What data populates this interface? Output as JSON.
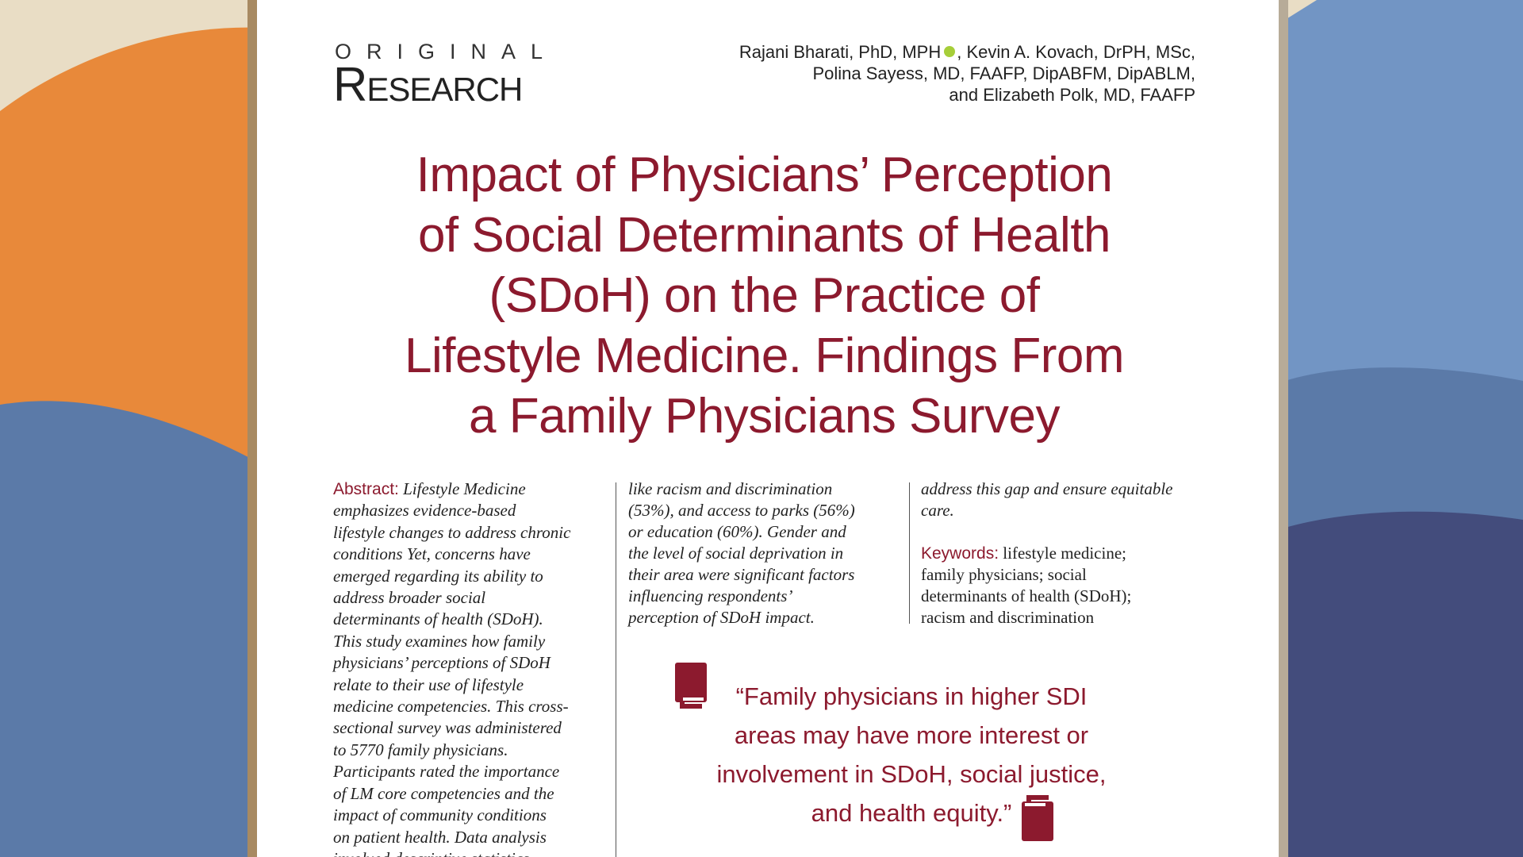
{
  "page": {
    "section_label_top": "ORIGINAL",
    "section_label_bottom": "Research",
    "authors": {
      "line1_before_orcid": "Rajani Bharati, PhD, MPH",
      "line1_after_orcid": ", Kevin A. Kovach, DrPH, MSc,",
      "line2": "Polina Sayess, MD, FAAFP, DipABFM, DipABLM,",
      "line3": "and Elizabeth Polk, MD, FAAFP"
    },
    "title_lines": [
      "Impact of Physicians’ Perception",
      "of Social Determinants of Health",
      "(SDoH) on the Practice of",
      "Lifestyle Medicine. Findings From",
      "a Family Physicians Survey"
    ],
    "abstract": {
      "label": "Abstract:",
      "lines": [
        " Lifestyle Medicine",
        "emphasizes evidence-based",
        "lifestyle changes to address chronic",
        "conditions Yet, concerns have",
        "emerged regarding its ability to",
        "address broader social",
        "determinants of health (SDoH).",
        "This study examines how family",
        "physicians’ perceptions of SDoH",
        "relate to their use of lifestyle",
        "medicine competencies. This cross-",
        "sectional survey was administered",
        "to 5770 family physicians.",
        "Participants rated the importance",
        "of LM core competencies and the",
        "impact of community conditions",
        "on patient health. Data analysis",
        "involved descriptive statistics"
      ]
    },
    "column2_lines": [
      "like racism and discrimination",
      "(53%), and access to parks (56%)",
      "or education (60%). Gender and",
      "the level of social deprivation in",
      "their area were significant factors",
      "influencing respondents’",
      "perception of SDoH impact."
    ],
    "column3": {
      "lines": [
        "address this gap and ensure equitable",
        "care."
      ],
      "keywords_label": "Keywords:",
      "keywords_lines": [
        " lifestyle medicine;",
        "family physicians; social",
        "determinants of health (SDoH);",
        "racism and discrimination"
      ]
    },
    "pull_quote_lines": [
      "“Family physicians in higher SDI",
      "areas may have more interest or",
      "involvement in SDoH, social justice,",
      "and health equity.”"
    ]
  }
}
